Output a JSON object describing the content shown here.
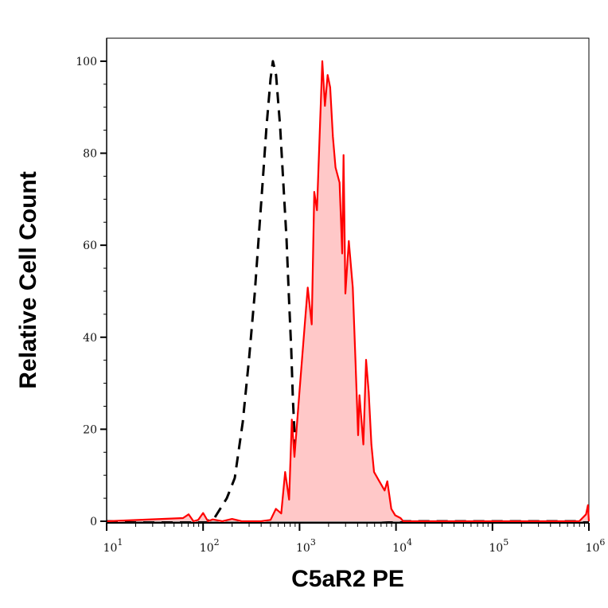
{
  "chart_data": {
    "type": "area",
    "title": "",
    "xlabel": "C5aR2 PE",
    "ylabel": "Relative Cell Count",
    "x_scale": "log",
    "xlim_log10": [
      1,
      6
    ],
    "ylim": [
      0,
      105
    ],
    "grid": false,
    "x_ticks": [
      {
        "base": "10",
        "exp": "1",
        "log10": 1
      },
      {
        "base": "10",
        "exp": "2",
        "log10": 2
      },
      {
        "base": "10",
        "exp": "3",
        "log10": 3
      },
      {
        "base": "10",
        "exp": "4",
        "log10": 4
      },
      {
        "base": "10",
        "exp": "5",
        "log10": 5
      },
      {
        "base": "10",
        "exp": "6",
        "log10": 6
      }
    ],
    "y_ticks": [
      "0",
      "20",
      "40",
      "60",
      "80",
      "100"
    ],
    "series": [
      {
        "style": "dashed",
        "color": "#000000",
        "fill": "none",
        "log10_x": [
          1.0,
          2.0,
          2.106,
          2.246,
          2.328,
          2.411,
          2.477,
          2.535,
          2.576,
          2.617,
          2.658,
          2.7,
          2.724,
          2.757,
          2.799,
          2.832,
          2.865,
          2.889,
          2.914,
          2.931,
          2.955,
          2.988,
          3.03,
          3.096,
          3.195,
          3.318,
          3.525,
          3.69,
          4.02,
          6.0
        ],
        "y": [
          0,
          0,
          0.3,
          5.0,
          9.4,
          21.5,
          35.4,
          49.3,
          61.5,
          73.6,
          85.8,
          96.2,
          100,
          97.0,
          85.8,
          73.6,
          61.5,
          49.3,
          37.2,
          26.7,
          16.3,
          9.4,
          6.8,
          2.4,
          1.9,
          1.6,
          0.7,
          0.3,
          0,
          0
        ]
      },
      {
        "style": "solid",
        "color": "#ff0000",
        "fill": "#ffc8c8",
        "log10_x": [
          1.0,
          1.792,
          1.85,
          1.9,
          1.95,
          2.0,
          2.05,
          2.1,
          2.2,
          2.3,
          2.4,
          2.5,
          2.6,
          2.7,
          2.755,
          2.81,
          2.851,
          2.892,
          2.92,
          2.947,
          3.002,
          3.057,
          3.085,
          3.126,
          3.153,
          3.181,
          3.208,
          3.236,
          3.263,
          3.291,
          3.318,
          3.346,
          3.373,
          3.415,
          3.442,
          3.456,
          3.475,
          3.511,
          3.552,
          3.58,
          3.607,
          3.621,
          3.662,
          3.69,
          3.717,
          3.745,
          3.772,
          3.827,
          3.882,
          3.91,
          3.951,
          3.992,
          4.047,
          4.075,
          5.9,
          5.97,
          5.99,
          6.0
        ],
        "y": [
          0,
          0.7,
          1.5,
          0,
          0.3,
          1.8,
          0,
          0.4,
          0,
          0.5,
          0,
          0,
          0,
          0.3,
          2.7,
          1.7,
          10.7,
          4.7,
          22.1,
          14.0,
          28.8,
          43.5,
          50.8,
          42.8,
          71.6,
          67.6,
          83.6,
          100,
          90.3,
          97.0,
          94.3,
          83.6,
          76.9,
          73.6,
          58.2,
          79.6,
          49.5,
          60.9,
          50.8,
          34.8,
          18.7,
          27.4,
          16.7,
          35.1,
          28.1,
          16.7,
          10.7,
          8.7,
          6.7,
          8.7,
          2.7,
          1.3,
          0.7,
          0,
          0,
          1.5,
          3.5,
          0
        ]
      }
    ]
  }
}
